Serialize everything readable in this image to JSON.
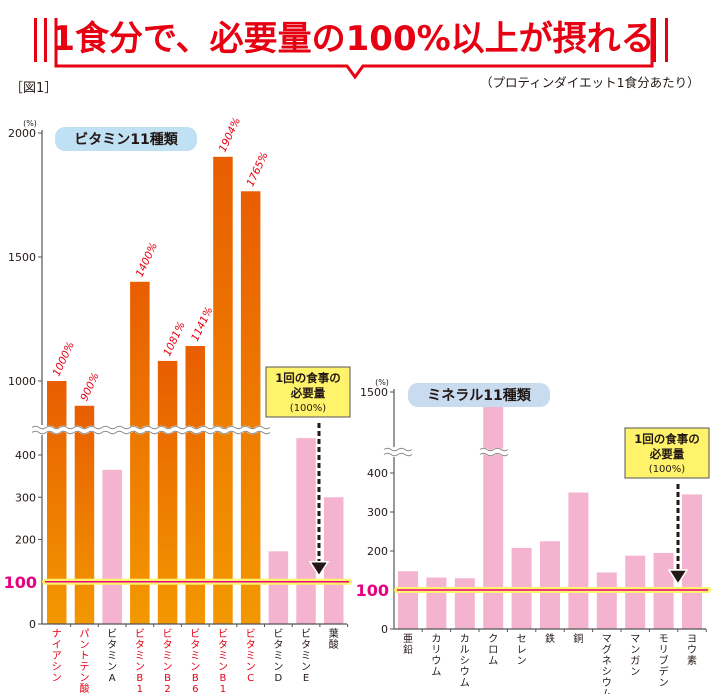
{
  "header": {
    "title": "1食分で、必要量の100%以上が摂れる",
    "figure_label": "［図1］",
    "subtitle": "（プロティンダイエット1食分あたり）",
    "accent_color": "#e60012"
  },
  "chart_data": [
    {
      "type": "bar",
      "title": "ビタミン11種類",
      "ylabel": "(%)",
      "axis_break": true,
      "lower_ticks": [
        0,
        100,
        200,
        300,
        400
      ],
      "upper_ticks": [
        1000,
        1500,
        2000
      ],
      "lower_range": [
        0,
        450
      ],
      "upper_range": [
        800,
        2000
      ],
      "reference_line": {
        "value": 100,
        "label": "100"
      },
      "note": {
        "line1": "1回の食事の",
        "line2": "必要量",
        "line3": "(100%)"
      },
      "categories": [
        {
          "label": "ナイアシン",
          "value": 1000,
          "value_label": "1000%",
          "group": "high"
        },
        {
          "label": "パントテン酸",
          "value": 900,
          "value_label": "900%",
          "group": "high"
        },
        {
          "label": "ビタミンA",
          "value": 365,
          "value_label": "",
          "group": "low"
        },
        {
          "label": "ビタミンB1",
          "value": 1400,
          "value_label": "1400%",
          "group": "high"
        },
        {
          "label": "ビタミンB2",
          "value": 1081,
          "value_label": "1081%",
          "group": "high"
        },
        {
          "label": "ビタミンB6",
          "value": 1141,
          "value_label": "1141%",
          "group": "high"
        },
        {
          "label": "ビタミンB12",
          "value": 1904,
          "value_label": "1904%",
          "group": "high"
        },
        {
          "label": "ビタミンC",
          "value": 1765,
          "value_label": "1765%",
          "group": "high"
        },
        {
          "label": "ビタミンD",
          "value": 172,
          "value_label": "",
          "group": "low"
        },
        {
          "label": "ビタミンE",
          "value": 440,
          "value_label": "",
          "group": "low"
        },
        {
          "label": "葉酸",
          "value": 300,
          "value_label": "",
          "group": "low"
        }
      ],
      "colors": {
        "high_top": "#e85d00",
        "high_bottom": "#f39800",
        "low": "#f4b4d0",
        "high_label": "#e60012",
        "low_label": "#231815",
        "badge": "#bfe1f3"
      }
    },
    {
      "type": "bar",
      "title": "ミネラル11種類",
      "ylabel": "(%)",
      "axis_break": true,
      "lower_ticks": [
        0,
        100,
        200,
        300,
        400
      ],
      "upper_ticks": [
        1500
      ],
      "lower_range": [
        0,
        450
      ],
      "upper_range": [
        1000,
        1500
      ],
      "reference_line": {
        "value": 100,
        "label": "100"
      },
      "note": {
        "line1": "1回の食事の",
        "line2": "必要量",
        "line3": "(100%)"
      },
      "categories": [
        {
          "label": "亜鉛",
          "value": 148
        },
        {
          "label": "カリウム",
          "value": 132
        },
        {
          "label": "カルシウム",
          "value": 130
        },
        {
          "label": "クロム",
          "value": 1250
        },
        {
          "label": "セレン",
          "value": 208
        },
        {
          "label": "鉄",
          "value": 225
        },
        {
          "label": "銅",
          "value": 350
        },
        {
          "label": "マグネシウム",
          "value": 145
        },
        {
          "label": "マンガン",
          "value": 188
        },
        {
          "label": "モリブデン",
          "value": 195
        },
        {
          "label": "ヨウ素",
          "value": 345
        }
      ],
      "colors": {
        "bar": "#f4b4d0",
        "label": "#231815",
        "badge": "#c8dbef"
      }
    }
  ]
}
